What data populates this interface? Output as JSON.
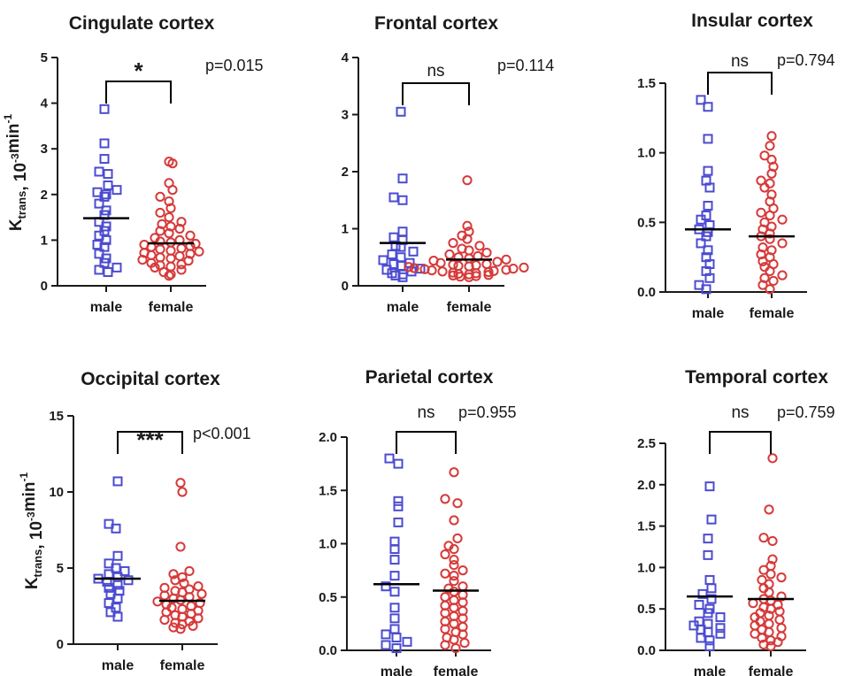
{
  "colors": {
    "male": "#4b4bd0",
    "female": "#d63a3a",
    "axis": "#1a1a1a"
  },
  "y_axis_label": {
    "main": "K",
    "sub": "trans",
    "mid": ", 10",
    "sup1": "-3",
    "unit": "min",
    "sup2": "-1"
  },
  "chart_data": [
    {
      "type": "scatter",
      "title": "Cingulate cortex",
      "categories": [
        "male",
        "female"
      ],
      "ylim": [
        0,
        5
      ],
      "yticks": [
        "0",
        "1",
        "2",
        "3",
        "4",
        "5"
      ],
      "significance": "*",
      "p_value": "p=0.015",
      "means": [
        1.48,
        0.93
      ],
      "series": [
        {
          "category": "male",
          "marker": "square",
          "values": [
            3.87,
            3.12,
            2.78,
            2.5,
            2.45,
            2.2,
            2.1,
            2.05,
            2.0,
            1.95,
            1.8,
            1.65,
            1.55,
            1.4,
            1.3,
            1.2,
            1.1,
            1.0,
            0.9,
            0.85,
            0.7,
            0.6,
            0.5,
            0.4,
            0.35,
            0.3
          ]
        },
        {
          "category": "female",
          "marker": "circle",
          "values": [
            2.72,
            2.68,
            2.25,
            2.1,
            1.95,
            1.85,
            1.7,
            1.6,
            1.5,
            1.4,
            1.35,
            1.3,
            1.25,
            1.2,
            1.15,
            1.1,
            1.05,
            1.0,
            0.97,
            0.95,
            0.92,
            0.9,
            0.87,
            0.85,
            0.82,
            0.8,
            0.77,
            0.75,
            0.72,
            0.7,
            0.67,
            0.65,
            0.62,
            0.6,
            0.57,
            0.55,
            0.5,
            0.47,
            0.45,
            0.42,
            0.4,
            0.35,
            0.3,
            0.25,
            0.22
          ]
        }
      ]
    },
    {
      "type": "scatter",
      "title": "Frontal cortex",
      "categories": [
        "male",
        "female"
      ],
      "ylim": [
        0,
        4
      ],
      "yticks": [
        "0",
        "1",
        "2",
        "3",
        "4"
      ],
      "significance": "ns",
      "p_value": "p=0.114",
      "means": [
        0.75,
        0.46
      ],
      "series": [
        {
          "category": "male",
          "marker": "square",
          "values": [
            3.05,
            1.88,
            1.55,
            1.5,
            0.95,
            0.85,
            0.8,
            0.7,
            0.68,
            0.6,
            0.55,
            0.5,
            0.45,
            0.4,
            0.38,
            0.35,
            0.3,
            0.28,
            0.25,
            0.22,
            0.2,
            0.18,
            0.15
          ]
        },
        {
          "category": "female",
          "marker": "circle",
          "values": [
            1.85,
            1.05,
            0.95,
            0.88,
            0.82,
            0.75,
            0.7,
            0.65,
            0.62,
            0.58,
            0.55,
            0.52,
            0.5,
            0.48,
            0.46,
            0.44,
            0.42,
            0.4,
            0.38,
            0.37,
            0.36,
            0.35,
            0.34,
            0.33,
            0.32,
            0.31,
            0.3,
            0.29,
            0.28,
            0.27,
            0.26,
            0.25,
            0.24,
            0.23,
            0.22,
            0.21,
            0.2,
            0.19,
            0.18,
            0.17,
            0.16,
            0.15
          ]
        }
      ]
    },
    {
      "type": "scatter",
      "title": "Insular cortex",
      "categories": [
        "male",
        "female"
      ],
      "ylim": [
        0,
        1.6
      ],
      "yticks": [
        "0.0",
        "0.5",
        "1.0",
        "1.5"
      ],
      "yticksVals": [
        0,
        0.5,
        1.0,
        1.5
      ],
      "significance": "ns",
      "p_value": "p=0.794",
      "means": [
        0.45,
        0.4
      ],
      "series": [
        {
          "category": "male",
          "marker": "square",
          "values": [
            1.38,
            1.33,
            1.1,
            0.87,
            0.8,
            0.75,
            0.62,
            0.55,
            0.52,
            0.48,
            0.45,
            0.43,
            0.4,
            0.35,
            0.3,
            0.25,
            0.2,
            0.15,
            0.1,
            0.05,
            0.02
          ]
        },
        {
          "category": "female",
          "marker": "circle",
          "values": [
            1.12,
            1.05,
            0.98,
            0.95,
            0.9,
            0.85,
            0.8,
            0.78,
            0.75,
            0.7,
            0.65,
            0.6,
            0.57,
            0.55,
            0.52,
            0.5,
            0.47,
            0.45,
            0.42,
            0.4,
            0.38,
            0.35,
            0.32,
            0.3,
            0.27,
            0.25,
            0.22,
            0.2,
            0.18,
            0.15,
            0.12,
            0.1,
            0.08,
            0.05,
            0.02
          ]
        }
      ]
    },
    {
      "type": "scatter",
      "title": "Occipital cortex",
      "categories": [
        "male",
        "female"
      ],
      "ylim": [
        0,
        15
      ],
      "yticks": [
        "0",
        "5",
        "10",
        "15"
      ],
      "yticksVals": [
        0,
        5,
        10,
        15
      ],
      "significance": "***",
      "p_value": "p<0.001",
      "means": [
        4.3,
        2.85
      ],
      "series": [
        {
          "category": "male",
          "marker": "square",
          "values": [
            10.7,
            7.9,
            7.6,
            5.8,
            5.3,
            5.0,
            4.8,
            4.6,
            4.4,
            4.3,
            4.2,
            4.1,
            3.9,
            3.7,
            3.5,
            3.3,
            3.0,
            2.7,
            2.4,
            2.1,
            1.8
          ]
        },
        {
          "category": "female",
          "marker": "circle",
          "values": [
            10.6,
            10.0,
            6.4,
            4.8,
            4.6,
            4.4,
            4.2,
            4.0,
            3.8,
            3.7,
            3.6,
            3.5,
            3.4,
            3.3,
            3.2,
            3.1,
            3.0,
            2.9,
            2.8,
            2.7,
            2.6,
            2.5,
            2.4,
            2.3,
            2.2,
            2.1,
            2.0,
            1.9,
            1.8,
            1.7,
            1.6,
            1.5,
            1.4,
            1.3,
            1.2,
            1.1,
            1.0
          ]
        }
      ]
    },
    {
      "type": "scatter",
      "title": "Parietal cortex",
      "categories": [
        "male",
        "female"
      ],
      "ylim": [
        0,
        2.0
      ],
      "yticks": [
        "0.0",
        "0.5",
        "1.0",
        "1.5",
        "2.0"
      ],
      "yticksVals": [
        0,
        0.5,
        1.0,
        1.5,
        2.0
      ],
      "significance": "ns",
      "p_value": "p=0.955",
      "means": [
        0.62,
        0.56
      ],
      "series": [
        {
          "category": "male",
          "marker": "square",
          "values": [
            1.8,
            1.75,
            1.4,
            1.35,
            1.2,
            1.02,
            0.95,
            0.85,
            0.7,
            0.6,
            0.55,
            0.4,
            0.3,
            0.2,
            0.15,
            0.12,
            0.08,
            0.05,
            0.02
          ]
        },
        {
          "category": "female",
          "marker": "circle",
          "values": [
            1.67,
            1.42,
            1.38,
            1.22,
            1.05,
            0.98,
            0.95,
            0.9,
            0.85,
            0.8,
            0.75,
            0.72,
            0.7,
            0.65,
            0.6,
            0.58,
            0.55,
            0.52,
            0.5,
            0.47,
            0.45,
            0.42,
            0.4,
            0.37,
            0.35,
            0.32,
            0.3,
            0.27,
            0.25,
            0.22,
            0.2,
            0.17,
            0.15,
            0.12,
            0.1,
            0.07,
            0.05,
            0.02
          ]
        }
      ]
    },
    {
      "type": "scatter",
      "title": "Temporal cortex",
      "categories": [
        "male",
        "female"
      ],
      "ylim": [
        0,
        2.5
      ],
      "yticks": [
        "0.0",
        "0.5",
        "1.0",
        "1.5",
        "2.0",
        "2.5"
      ],
      "yticksVals": [
        0,
        0.5,
        1.0,
        1.5,
        2.0,
        2.5
      ],
      "significance": "ns",
      "p_value": "p=0.759",
      "means": [
        0.65,
        0.62
      ],
      "series": [
        {
          "category": "male",
          "marker": "square",
          "values": [
            1.98,
            1.58,
            1.35,
            1.15,
            0.85,
            0.75,
            0.68,
            0.62,
            0.55,
            0.5,
            0.45,
            0.4,
            0.35,
            0.32,
            0.3,
            0.27,
            0.25,
            0.22,
            0.2,
            0.15,
            0.12,
            0.05
          ]
        },
        {
          "category": "female",
          "marker": "circle",
          "values": [
            2.32,
            1.7,
            1.36,
            1.32,
            1.1,
            1.02,
            0.97,
            0.92,
            0.88,
            0.85,
            0.8,
            0.75,
            0.7,
            0.65,
            0.62,
            0.6,
            0.57,
            0.55,
            0.52,
            0.5,
            0.47,
            0.45,
            0.42,
            0.4,
            0.37,
            0.35,
            0.32,
            0.3,
            0.27,
            0.25,
            0.22,
            0.2,
            0.17,
            0.15,
            0.12,
            0.1,
            0.07,
            0.05
          ]
        }
      ]
    }
  ]
}
